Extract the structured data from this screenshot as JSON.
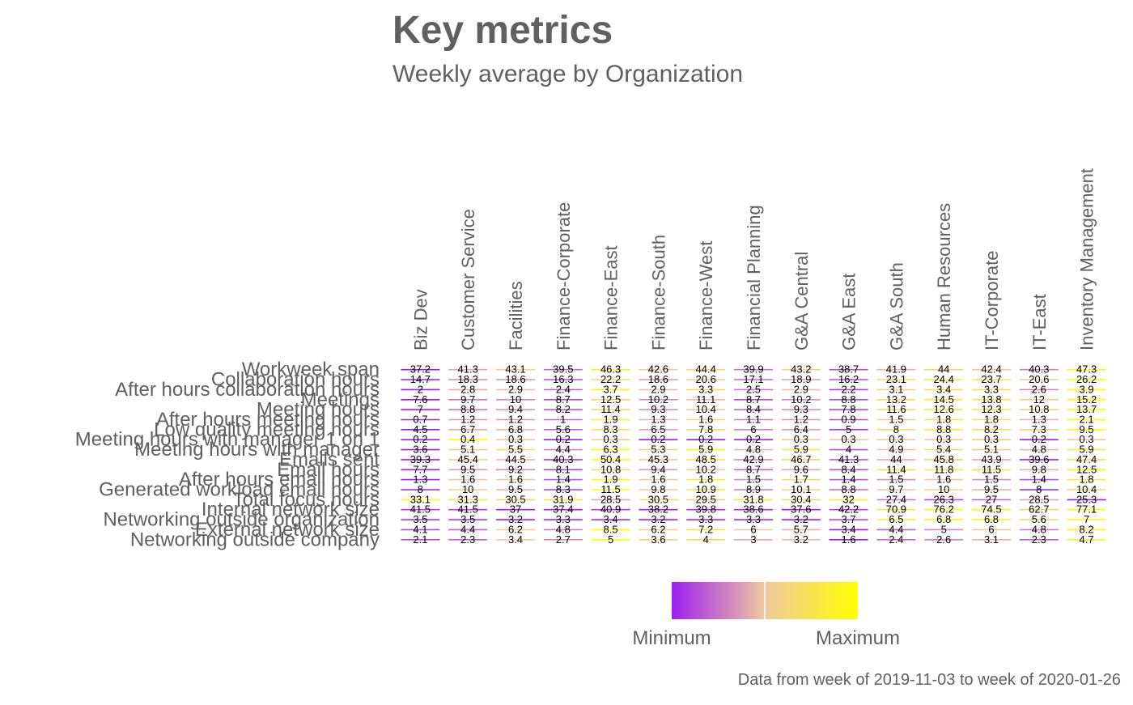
{
  "chart_data": {
    "type": "heatmap",
    "title": "Key metrics",
    "subtitle": "Weekly average by Organization",
    "caption": "Data from week of 2019-11-03 to week of 2020-01-26",
    "color_scale": {
      "low": "#9e1ff0",
      "mid": "#f0c8a0",
      "high": "#ffff00"
    },
    "legend": {
      "min_label": "Minimum",
      "max_label": "Maximum",
      "placement": "bottom-center"
    },
    "x_categories": [
      "Biz Dev",
      "Customer Service",
      "Facilities",
      "Finance-Corporate",
      "Finance-East",
      "Finance-South",
      "Finance-West",
      "Financial Planning",
      "G&A Central",
      "G&A East",
      "G&A South",
      "Human Resources",
      "IT-Corporate",
      "IT-East",
      "Inventory Management"
    ],
    "y_categories": [
      "Workweek span",
      "Collaboration hours",
      "After hours collaboration hours",
      "Meetings",
      "Meeting hours",
      "After hours meeting hours",
      "Low quality meeting hours",
      "Meeting hours with manager 1 on 1",
      "Meeting hours with manager",
      "Emails sent",
      "Email hours",
      "After hours email hours",
      "Generated workload email hours",
      "Total focus hours",
      "Internal network size",
      "Networking outside organization",
      "External network size",
      "Networking outside company"
    ],
    "values": [
      [
        37.2,
        41.3,
        43.1,
        39.5,
        46.3,
        42.6,
        44.4,
        39.9,
        43.2,
        38.7,
        41.9,
        44,
        42.4,
        40.3,
        47.3
      ],
      [
        14.7,
        18.3,
        18.6,
        16.3,
        22.2,
        18.6,
        20.6,
        17.1,
        18.9,
        16.2,
        23.1,
        24.4,
        23.7,
        20.6,
        26.2
      ],
      [
        2,
        2.8,
        2.9,
        2.4,
        3.7,
        2.9,
        3.3,
        2.5,
        2.9,
        2.2,
        3.1,
        3.4,
        3.3,
        2.6,
        3.9
      ],
      [
        7.6,
        9.7,
        10,
        8.7,
        12.5,
        10.2,
        11.1,
        8.7,
        10.2,
        8.8,
        13.2,
        14.5,
        13.8,
        12,
        15.2
      ],
      [
        7,
        8.8,
        9.4,
        8.2,
        11.4,
        9.3,
        10.4,
        8.4,
        9.3,
        7.8,
        11.6,
        12.6,
        12.3,
        10.8,
        13.7
      ],
      [
        0.7,
        1.2,
        1.2,
        1,
        1.9,
        1.3,
        1.6,
        1.1,
        1.2,
        0.9,
        1.5,
        1.8,
        1.8,
        1.3,
        2.1
      ],
      [
        4.5,
        6.7,
        6.8,
        5.6,
        8.3,
        6.5,
        7.8,
        6,
        6.4,
        5,
        8,
        8.8,
        8.2,
        7.3,
        9.5
      ],
      [
        0.2,
        0.4,
        0.3,
        0.2,
        0.3,
        0.2,
        0.2,
        0.2,
        0.3,
        0.3,
        0.3,
        0.3,
        0.3,
        0.2,
        0.3
      ],
      [
        3.6,
        5.1,
        5.5,
        4.4,
        6.3,
        5.3,
        5.9,
        4.8,
        5.9,
        4,
        4.9,
        5.4,
        5.1,
        4.8,
        5.9
      ],
      [
        39.3,
        45.4,
        44.5,
        40.3,
        50.4,
        45.3,
        48.5,
        42.9,
        46.7,
        41.3,
        44,
        45.8,
        43.9,
        39.6,
        47.4
      ],
      [
        7.7,
        9.5,
        9.2,
        8.1,
        10.8,
        9.4,
        10.2,
        8.7,
        9.6,
        8.4,
        11.4,
        11.8,
        11.5,
        9.8,
        12.5
      ],
      [
        1.3,
        1.6,
        1.6,
        1.4,
        1.9,
        1.6,
        1.8,
        1.5,
        1.7,
        1.4,
        1.5,
        1.6,
        1.5,
        1.4,
        1.8
      ],
      [
        8,
        10,
        9.5,
        8.3,
        11.5,
        9.8,
        10.9,
        8.9,
        10.1,
        8.8,
        9.7,
        10,
        9.5,
        8,
        10.4
      ],
      [
        33.1,
        31.3,
        30.5,
        31.9,
        28.5,
        30.5,
        29.5,
        31.8,
        30.4,
        32,
        27.4,
        26.3,
        27,
        28.5,
        25.3
      ],
      [
        41.5,
        41.5,
        37,
        37.4,
        40.9,
        38.2,
        39.8,
        38.6,
        37.6,
        42.2,
        70.9,
        76.2,
        74.5,
        62.7,
        77.1
      ],
      [
        3.5,
        3.5,
        3.2,
        3.3,
        3.4,
        3.2,
        3.3,
        3.3,
        3.2,
        3.7,
        6.5,
        6.8,
        6.8,
        5.6,
        7
      ],
      [
        4.1,
        4.4,
        6.2,
        4.8,
        8.5,
        6.2,
        7.2,
        6,
        5.7,
        3.4,
        4.4,
        5,
        6,
        4.8,
        8.2
      ],
      [
        2.1,
        2.3,
        3.4,
        2.7,
        5,
        3.6,
        4,
        3,
        3.2,
        1.6,
        2.4,
        2.6,
        3.1,
        2.3,
        4.7
      ]
    ]
  }
}
